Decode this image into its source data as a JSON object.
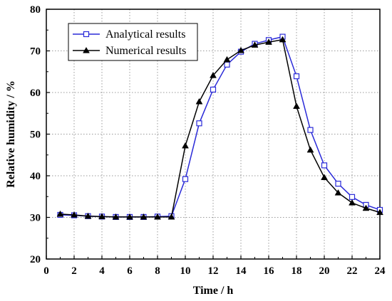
{
  "chart_data": {
    "type": "line",
    "xlabel": "Time / h",
    "ylabel": "Relative humidity / %",
    "xlim": [
      0,
      24
    ],
    "ylim": [
      20,
      80
    ],
    "xticks": [
      0,
      2,
      4,
      6,
      8,
      10,
      12,
      14,
      16,
      18,
      20,
      22,
      24
    ],
    "yticks": [
      20,
      30,
      40,
      50,
      60,
      70,
      80
    ],
    "x_tick_labels": [
      "0",
      "2",
      "4",
      "6",
      "8",
      "10",
      "12",
      "14",
      "16",
      "18",
      "20",
      "22",
      "24"
    ],
    "y_tick_labels": [
      "20",
      "30",
      "40",
      "50",
      "60",
      "70",
      "80"
    ],
    "grid": true,
    "legend_position": "top-left",
    "x": [
      1,
      2,
      3,
      4,
      5,
      6,
      7,
      8,
      9,
      10,
      11,
      12,
      13,
      14,
      15,
      16,
      17,
      18,
      19,
      20,
      21,
      22,
      23,
      24
    ],
    "series": [
      {
        "name": "Analytical results",
        "color": "#2a2ad8",
        "marker": "open-square",
        "values": [
          30.6,
          30.5,
          30.3,
          30.2,
          30.1,
          30.1,
          30.1,
          30.2,
          30.3,
          39.2,
          52.6,
          60.7,
          66.7,
          69.8,
          71.7,
          72.6,
          73.4,
          63.9,
          51.0,
          42.5,
          38.1,
          34.9,
          33.0,
          31.8
        ]
      },
      {
        "name": "Numerical results",
        "color": "#000000",
        "marker": "filled-triangle",
        "values": [
          30.8,
          30.6,
          30.3,
          30.2,
          30.1,
          30.1,
          30.1,
          30.1,
          30.1,
          47.2,
          57.8,
          64.1,
          67.9,
          70.1,
          71.4,
          72.1,
          72.7,
          56.7,
          46.2,
          39.6,
          35.9,
          33.5,
          32.2,
          31.2
        ]
      }
    ]
  }
}
